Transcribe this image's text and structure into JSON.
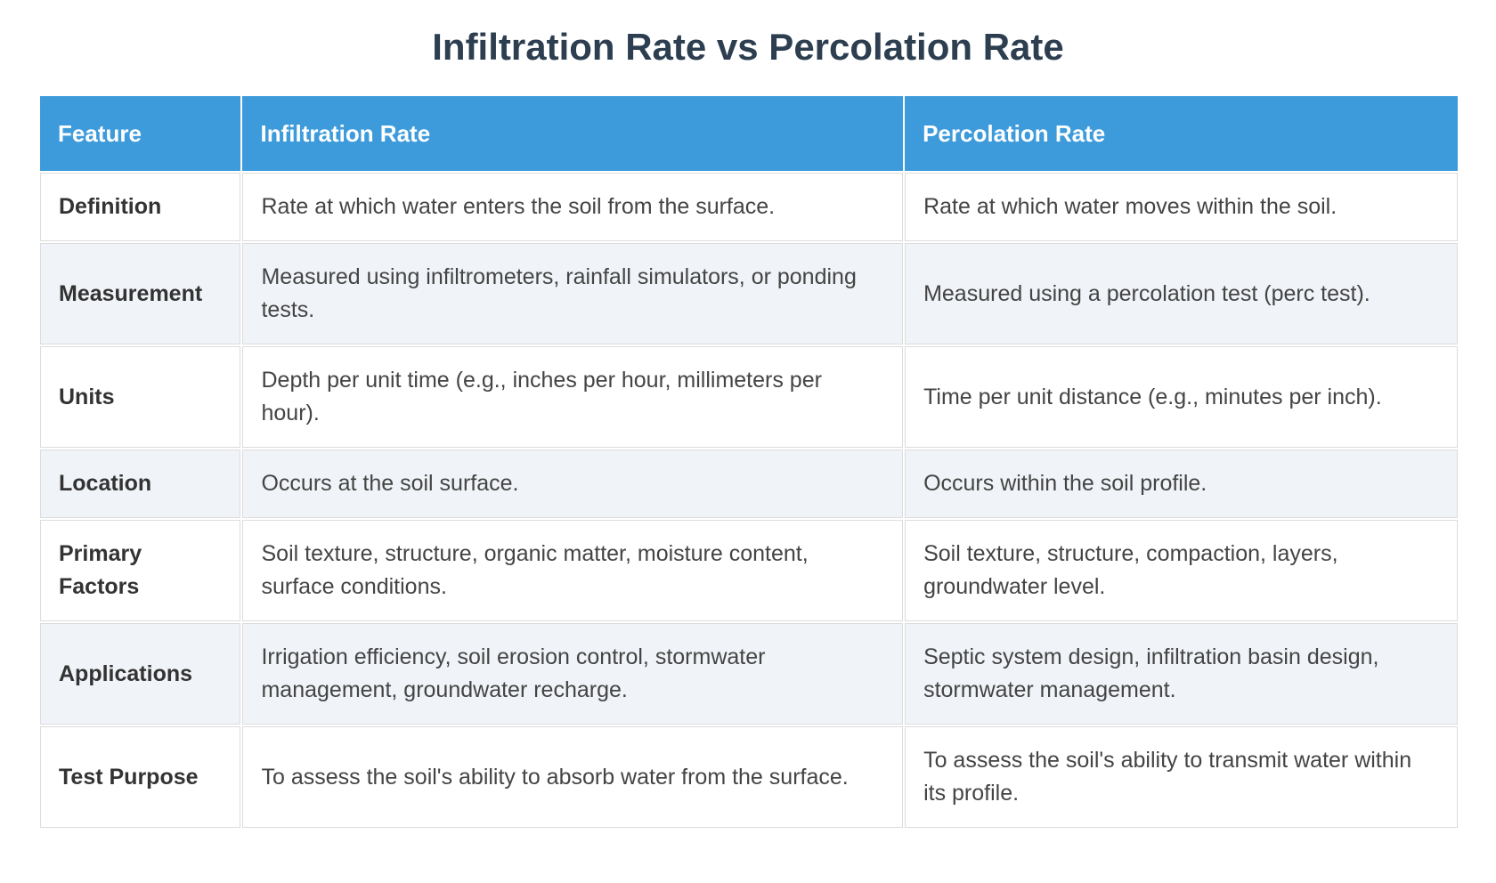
{
  "page": {
    "title": "Infiltration Rate vs Percolation Rate"
  },
  "table": {
    "columns": [
      "Feature",
      "Infiltration Rate",
      "Percolation Rate"
    ],
    "rows": [
      {
        "feature": "Definition",
        "infiltration": "Rate at which water enters the soil from the surface.",
        "percolation": "Rate at which water moves within the soil."
      },
      {
        "feature": "Measurement",
        "infiltration": "Measured using infiltrometers, rainfall simulators, or ponding tests.",
        "percolation": "Measured using a percolation test (perc test)."
      },
      {
        "feature": "Units",
        "infiltration": "Depth per unit time (e.g., inches per hour, millimeters per hour).",
        "percolation": "Time per unit distance (e.g., minutes per inch)."
      },
      {
        "feature": "Location",
        "infiltration": "Occurs at the soil surface.",
        "percolation": "Occurs within the soil profile."
      },
      {
        "feature": "Primary Factors",
        "infiltration": "Soil texture, structure, organic matter, moisture content, surface conditions.",
        "percolation": "Soil texture, structure, compaction, layers, groundwater level."
      },
      {
        "feature": "Applications",
        "infiltration": "Irrigation efficiency, soil erosion control, stormwater management, groundwater recharge.",
        "percolation": "Septic system design, infiltration basin design, stormwater management."
      },
      {
        "feature": "Test Purpose",
        "infiltration": "To assess the soil's ability to absorb water from the surface.",
        "percolation": "To assess the soil's ability to transmit water within its profile."
      }
    ]
  },
  "colors": {
    "header_bg": "#3d9bdb",
    "header_text": "#ffffff",
    "row_bg": "#ffffff",
    "row_alt_bg": "#f0f3f7",
    "border": "#dcdcdc",
    "title_text": "#2c3e50",
    "body_text": "#444444",
    "feature_text": "#333333",
    "page_bg": "#ffffff"
  }
}
